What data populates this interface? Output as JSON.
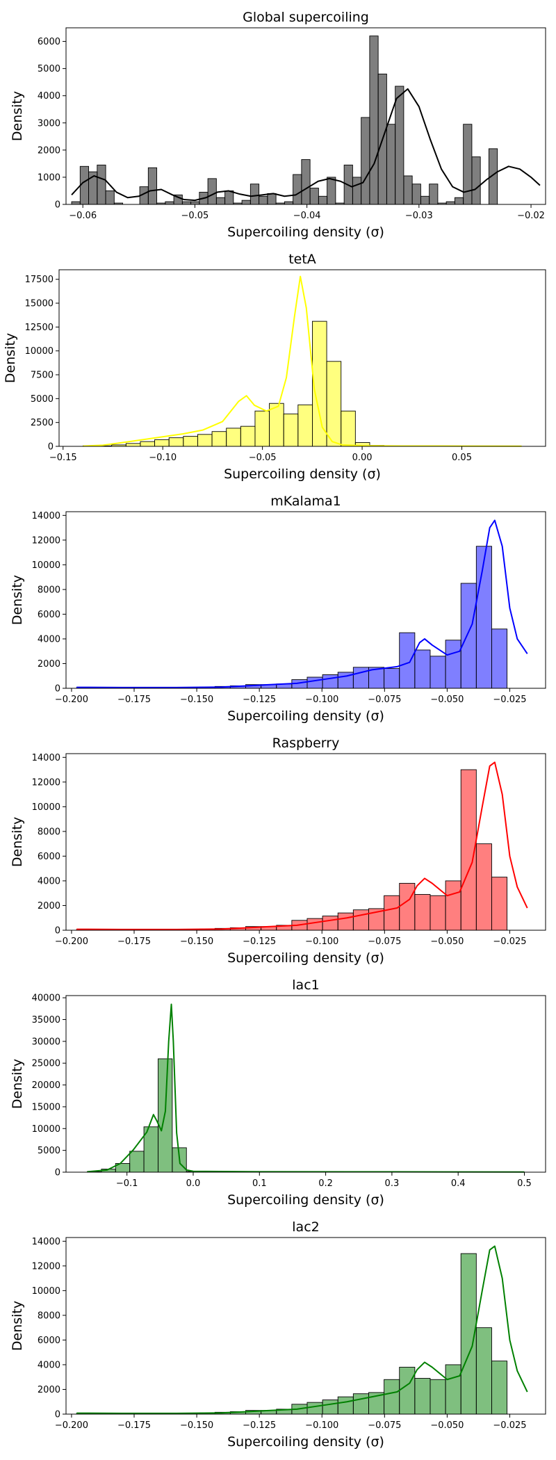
{
  "chart_data": [
    {
      "type": "bar",
      "title": "Global supercoiling",
      "xlabel": "Supercoiling density (σ)",
      "ylabel": "Density",
      "color": "#000000",
      "xlim": [
        -0.0615,
        -0.0187
      ],
      "ylim": [
        0,
        6500
      ],
      "xticks": [
        -0.06,
        -0.05,
        -0.04,
        -0.03,
        -0.02
      ],
      "xtick_labels": [
        "−0.06",
        "−0.05",
        "−0.04",
        "−0.03",
        "−0.02"
      ],
      "yticks": [
        0,
        1000,
        2000,
        3000,
        4000,
        5000,
        6000
      ],
      "ytick_labels": [
        "0",
        "1000",
        "2000",
        "3000",
        "4000",
        "5000",
        "6000"
      ],
      "bin_start": -0.061,
      "bin_width": 0.00076,
      "values": [
        100,
        1400,
        1200,
        1450,
        500,
        50,
        0,
        0,
        650,
        1350,
        50,
        100,
        350,
        100,
        100,
        450,
        950,
        250,
        500,
        50,
        150,
        750,
        300,
        400,
        50,
        100,
        1100,
        1650,
        600,
        300,
        1000,
        50,
        1450,
        1000,
        3200,
        6200,
        4800,
        2950,
        4350,
        1050,
        750,
        300,
        750,
        50,
        100,
        250,
        2950,
        1750,
        0,
        2050
      ],
      "kde": [
        [
          -0.061,
          350
        ],
        [
          -0.06,
          800
        ],
        [
          -0.059,
          1050
        ],
        [
          -0.058,
          900
        ],
        [
          -0.057,
          450
        ],
        [
          -0.056,
          250
        ],
        [
          -0.055,
          300
        ],
        [
          -0.054,
          500
        ],
        [
          -0.053,
          550
        ],
        [
          -0.052,
          350
        ],
        [
          -0.051,
          180
        ],
        [
          -0.05,
          150
        ],
        [
          -0.049,
          250
        ],
        [
          -0.048,
          450
        ],
        [
          -0.047,
          500
        ],
        [
          -0.046,
          380
        ],
        [
          -0.045,
          300
        ],
        [
          -0.044,
          350
        ],
        [
          -0.043,
          400
        ],
        [
          -0.042,
          300
        ],
        [
          -0.041,
          350
        ],
        [
          -0.04,
          600
        ],
        [
          -0.039,
          850
        ],
        [
          -0.038,
          950
        ],
        [
          -0.037,
          850
        ],
        [
          -0.036,
          650
        ],
        [
          -0.035,
          800
        ],
        [
          -0.034,
          1500
        ],
        [
          -0.033,
          2700
        ],
        [
          -0.032,
          3900
        ],
        [
          -0.031,
          4250
        ],
        [
          -0.03,
          3600
        ],
        [
          -0.029,
          2400
        ],
        [
          -0.028,
          1300
        ],
        [
          -0.027,
          650
        ],
        [
          -0.026,
          450
        ],
        [
          -0.025,
          550
        ],
        [
          -0.024,
          900
        ],
        [
          -0.023,
          1200
        ],
        [
          -0.022,
          1400
        ],
        [
          -0.021,
          1300
        ],
        [
          -0.02,
          1000
        ],
        [
          -0.0192,
          700
        ]
      ]
    },
    {
      "type": "bar",
      "title": "tetA",
      "xlabel": "Supercoiling density (σ)",
      "ylabel": "Density",
      "color": "#ffff00",
      "xlim": [
        -0.152,
        0.092
      ],
      "ylim": [
        0,
        18500
      ],
      "xticks": [
        -0.15,
        -0.1,
        -0.05,
        0.0,
        0.05
      ],
      "xtick_labels": [
        "−0.15",
        "−0.10",
        "−0.05",
        "0.00",
        "0.05"
      ],
      "yticks": [
        0,
        2500,
        5000,
        7500,
        10000,
        12500,
        15000,
        17500
      ],
      "ytick_labels": [
        "0",
        "2500",
        "5000",
        "7500",
        "10000",
        "12500",
        "15000",
        "17500"
      ],
      "bin_start": -0.14,
      "bin_width": 0.00719,
      "values": [
        50,
        50,
        150,
        300,
        500,
        700,
        900,
        1050,
        1250,
        1550,
        1900,
        2100,
        3700,
        4500,
        3400,
        4350,
        13100,
        8900,
        3700,
        400,
        100,
        50,
        50,
        30,
        20,
        20,
        10,
        10,
        10,
        10
      ],
      "kde": [
        [
          -0.14,
          30
        ],
        [
          -0.13,
          120
        ],
        [
          -0.12,
          400
        ],
        [
          -0.11,
          700
        ],
        [
          -0.1,
          1000
        ],
        [
          -0.09,
          1300
        ],
        [
          -0.08,
          1700
        ],
        [
          -0.07,
          2600
        ],
        [
          -0.062,
          4700
        ],
        [
          -0.058,
          5300
        ],
        [
          -0.054,
          4300
        ],
        [
          -0.048,
          3700
        ],
        [
          -0.042,
          4200
        ],
        [
          -0.038,
          7200
        ],
        [
          -0.034,
          13500
        ],
        [
          -0.031,
          17800
        ],
        [
          -0.028,
          14500
        ],
        [
          -0.024,
          6000
        ],
        [
          -0.02,
          2000
        ],
        [
          -0.015,
          500
        ],
        [
          -0.01,
          150
        ],
        [
          0.0,
          60
        ],
        [
          0.02,
          40
        ],
        [
          0.05,
          30
        ],
        [
          0.08,
          20
        ]
      ]
    },
    {
      "type": "bar",
      "title": "mKalama1",
      "xlabel": "Supercoiling density (σ)",
      "ylabel": "Density",
      "color": "#0000ff",
      "xlim": [
        -0.2022,
        -0.0107
      ],
      "ylim": [
        0,
        14300
      ],
      "xticks": [
        -0.2,
        -0.175,
        -0.15,
        -0.125,
        -0.1,
        -0.075,
        -0.05,
        -0.025
      ],
      "xtick_labels": [
        "−0.200",
        "−0.175",
        "−0.150",
        "−0.125",
        "−0.100",
        "−0.075",
        "−0.050",
        "−0.025"
      ],
      "yticks": [
        0,
        2000,
        4000,
        6000,
        8000,
        10000,
        12000,
        14000
      ],
      "ytick_labels": [
        "0",
        "2000",
        "4000",
        "6000",
        "8000",
        "10000",
        "12000",
        "14000"
      ],
      "bin_start": -0.198,
      "bin_width": 0.00614,
      "values": [
        50,
        30,
        30,
        30,
        30,
        30,
        30,
        50,
        100,
        150,
        200,
        300,
        300,
        350,
        700,
        900,
        1100,
        1300,
        1700,
        1700,
        1600,
        4500,
        3100,
        2600,
        3900,
        8500,
        11500,
        4800
      ],
      "kde": [
        [
          -0.198,
          80
        ],
        [
          -0.18,
          60
        ],
        [
          -0.16,
          60
        ],
        [
          -0.14,
          100
        ],
        [
          -0.13,
          200
        ],
        [
          -0.12,
          300
        ],
        [
          -0.11,
          400
        ],
        [
          -0.1,
          700
        ],
        [
          -0.09,
          1000
        ],
        [
          -0.08,
          1500
        ],
        [
          -0.07,
          1750
        ],
        [
          -0.065,
          2100
        ],
        [
          -0.061,
          3700
        ],
        [
          -0.059,
          4000
        ],
        [
          -0.056,
          3500
        ],
        [
          -0.05,
          2700
        ],
        [
          -0.045,
          3000
        ],
        [
          -0.04,
          5200
        ],
        [
          -0.036,
          9500
        ],
        [
          -0.033,
          13000
        ],
        [
          -0.031,
          13600
        ],
        [
          -0.028,
          11500
        ],
        [
          -0.025,
          6500
        ],
        [
          -0.022,
          4000
        ],
        [
          -0.018,
          2800
        ]
      ]
    },
    {
      "type": "bar",
      "title": "Raspberry",
      "xlabel": "Supercoiling density (σ)",
      "ylabel": "Density",
      "color": "#ff0000",
      "xlim": [
        -0.2022,
        -0.0107
      ],
      "ylim": [
        0,
        14300
      ],
      "xticks": [
        -0.2,
        -0.175,
        -0.15,
        -0.125,
        -0.1,
        -0.075,
        -0.05,
        -0.025
      ],
      "xtick_labels": [
        "−0.200",
        "−0.175",
        "−0.150",
        "−0.125",
        "−0.100",
        "−0.075",
        "−0.050",
        "−0.025"
      ],
      "yticks": [
        0,
        2000,
        4000,
        6000,
        8000,
        10000,
        12000,
        14000
      ],
      "ytick_labels": [
        "0",
        "2000",
        "4000",
        "6000",
        "8000",
        "10000",
        "12000",
        "14000"
      ],
      "bin_start": -0.198,
      "bin_width": 0.00614,
      "values": [
        50,
        30,
        30,
        30,
        30,
        30,
        30,
        50,
        100,
        150,
        200,
        300,
        300,
        400,
        800,
        950,
        1150,
        1400,
        1650,
        1750,
        2800,
        3800,
        2900,
        2800,
        4000,
        13000,
        7000,
        4300
      ],
      "kde": [
        [
          -0.198,
          80
        ],
        [
          -0.18,
          60
        ],
        [
          -0.16,
          60
        ],
        [
          -0.14,
          100
        ],
        [
          -0.13,
          200
        ],
        [
          -0.12,
          300
        ],
        [
          -0.11,
          400
        ],
        [
          -0.1,
          700
        ],
        [
          -0.09,
          1000
        ],
        [
          -0.08,
          1400
        ],
        [
          -0.07,
          1800
        ],
        [
          -0.065,
          2500
        ],
        [
          -0.062,
          3600
        ],
        [
          -0.059,
          4200
        ],
        [
          -0.056,
          3800
        ],
        [
          -0.05,
          2800
        ],
        [
          -0.045,
          3100
        ],
        [
          -0.04,
          5500
        ],
        [
          -0.036,
          10000
        ],
        [
          -0.033,
          13300
        ],
        [
          -0.031,
          13600
        ],
        [
          -0.028,
          11000
        ],
        [
          -0.025,
          6000
        ],
        [
          -0.022,
          3500
        ],
        [
          -0.018,
          1800
        ]
      ]
    },
    {
      "type": "bar",
      "title": "lac1",
      "xlabel": "Supercoiling density (σ)",
      "ylabel": "Density",
      "color": "#008000",
      "xlim": [
        -0.192,
        0.532
      ],
      "ylim": [
        0,
        40500
      ],
      "xticks": [
        -0.1,
        0.0,
        0.1,
        0.2,
        0.3,
        0.4,
        0.5
      ],
      "xtick_labels": [
        "−0.1",
        "0.0",
        "0.1",
        "0.2",
        "0.3",
        "0.4",
        "0.5"
      ],
      "yticks": [
        0,
        5000,
        10000,
        15000,
        20000,
        25000,
        30000,
        35000,
        40000
      ],
      "ytick_labels": [
        "0",
        "5000",
        "10000",
        "15000",
        "20000",
        "25000",
        "30000",
        "35000",
        "40000"
      ],
      "bin_start": -0.16,
      "bin_width": 0.0214,
      "values": [
        100,
        700,
        2000,
        4800,
        10400,
        26000,
        5600,
        150,
        50,
        20,
        20,
        10,
        10,
        10,
        10,
        10,
        10,
        10,
        10,
        10,
        10,
        10,
        10,
        10,
        10,
        10,
        10,
        10,
        10,
        10
      ],
      "kde": [
        [
          -0.16,
          100
        ],
        [
          -0.13,
          500
        ],
        [
          -0.11,
          2000
        ],
        [
          -0.09,
          5200
        ],
        [
          -0.07,
          9200
        ],
        [
          -0.06,
          13200
        ],
        [
          -0.055,
          11800
        ],
        [
          -0.048,
          9500
        ],
        [
          -0.042,
          14000
        ],
        [
          -0.037,
          30000
        ],
        [
          -0.033,
          38500
        ],
        [
          -0.03,
          30000
        ],
        [
          -0.025,
          9000
        ],
        [
          -0.02,
          2000
        ],
        [
          -0.01,
          500
        ],
        [
          0.0,
          200
        ],
        [
          0.1,
          100
        ],
        [
          0.3,
          80
        ],
        [
          0.5,
          50
        ]
      ]
    },
    {
      "type": "bar",
      "title": "lac2",
      "xlabel": "Supercoiling density (σ)",
      "ylabel": "Density",
      "color": "#008000",
      "xlim": [
        -0.2022,
        -0.0107
      ],
      "ylim": [
        0,
        14300
      ],
      "xticks": [
        -0.2,
        -0.175,
        -0.15,
        -0.125,
        -0.1,
        -0.075,
        -0.05,
        -0.025
      ],
      "xtick_labels": [
        "−0.200",
        "−0.175",
        "−0.150",
        "−0.125",
        "−0.100",
        "−0.075",
        "−0.050",
        "−0.025"
      ],
      "yticks": [
        0,
        2000,
        4000,
        6000,
        8000,
        10000,
        12000,
        14000
      ],
      "ytick_labels": [
        "0",
        "2000",
        "4000",
        "6000",
        "8000",
        "10000",
        "12000",
        "14000"
      ],
      "bin_start": -0.198,
      "bin_width": 0.00614,
      "values": [
        50,
        30,
        30,
        30,
        30,
        30,
        30,
        50,
        100,
        150,
        200,
        300,
        300,
        400,
        800,
        950,
        1150,
        1400,
        1650,
        1750,
        2800,
        3800,
        2900,
        2800,
        4000,
        13000,
        7000,
        4300
      ],
      "kde": [
        [
          -0.198,
          80
        ],
        [
          -0.18,
          60
        ],
        [
          -0.16,
          60
        ],
        [
          -0.14,
          100
        ],
        [
          -0.13,
          200
        ],
        [
          -0.12,
          300
        ],
        [
          -0.11,
          400
        ],
        [
          -0.1,
          700
        ],
        [
          -0.09,
          1000
        ],
        [
          -0.08,
          1400
        ],
        [
          -0.07,
          1800
        ],
        [
          -0.065,
          2500
        ],
        [
          -0.062,
          3600
        ],
        [
          -0.059,
          4200
        ],
        [
          -0.056,
          3800
        ],
        [
          -0.05,
          2800
        ],
        [
          -0.045,
          3100
        ],
        [
          -0.04,
          5500
        ],
        [
          -0.036,
          10000
        ],
        [
          -0.033,
          13300
        ],
        [
          -0.031,
          13600
        ],
        [
          -0.028,
          11000
        ],
        [
          -0.025,
          6000
        ],
        [
          -0.022,
          3500
        ],
        [
          -0.018,
          1800
        ]
      ]
    }
  ]
}
